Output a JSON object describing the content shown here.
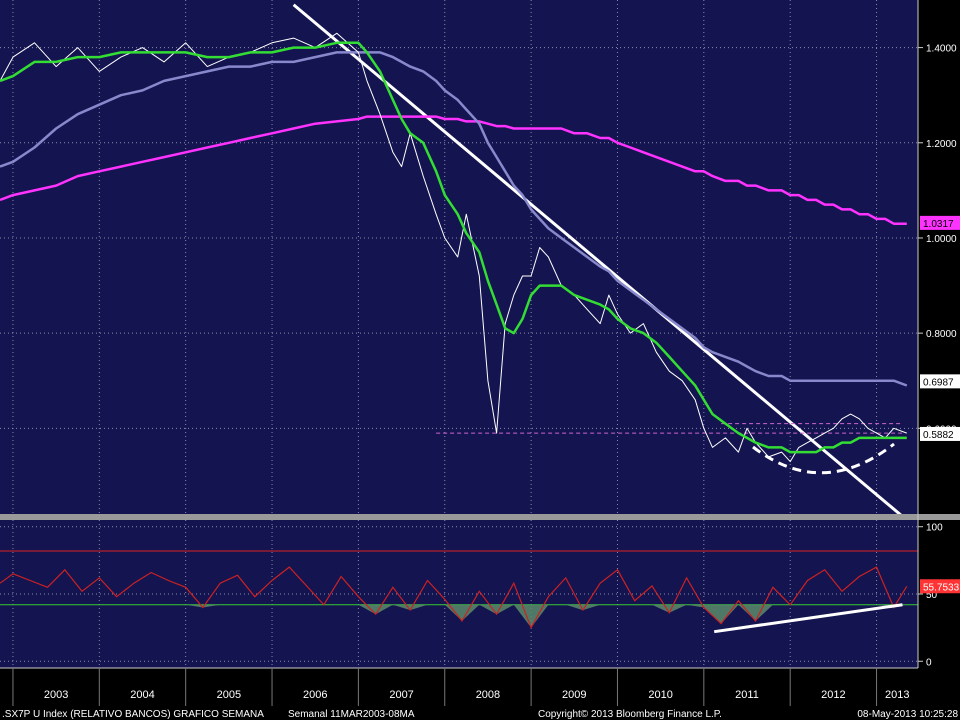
{
  "chart_data": [
    {
      "type": "line",
      "x": [
        2002.85,
        2003.0,
        2003.25,
        2003.5,
        2003.75,
        2004.0,
        2004.25,
        2004.5,
        2004.75,
        2005.0,
        2005.25,
        2005.5,
        2005.75,
        2006.0,
        2006.25,
        2006.5,
        2006.75,
        2007.0,
        2007.1,
        2007.25,
        2007.4,
        2007.5,
        2007.6,
        2007.75,
        2007.9,
        2008.0,
        2008.15,
        2008.25,
        2008.4,
        2008.5,
        2008.6,
        2008.7,
        2008.8,
        2008.9,
        2009.0,
        2009.1,
        2009.2,
        2009.35,
        2009.5,
        2009.65,
        2009.8,
        2009.9,
        2010.0,
        2010.15,
        2010.3,
        2010.45,
        2010.6,
        2010.75,
        2010.9,
        2011.0,
        2011.1,
        2011.25,
        2011.4,
        2011.5,
        2011.6,
        2011.75,
        2011.9,
        2012.0,
        2012.1,
        2012.2,
        2012.3,
        2012.4,
        2012.5,
        2012.6,
        2012.7,
        2012.8,
        2012.9,
        2013.0,
        2013.1,
        2013.2,
        2013.35
      ],
      "ylim": [
        0.42,
        1.5
      ],
      "y_ticks": [
        "1.4000",
        "1.2000",
        "1.0000",
        "0.8000",
        "0.6000"
      ],
      "y_tick_values": [
        1.4,
        1.2,
        1.0,
        0.8,
        0.6
      ],
      "series": [
        {
          "name": "price",
          "color": "#ffffff",
          "values": [
            1.33,
            1.38,
            1.41,
            1.36,
            1.4,
            1.35,
            1.38,
            1.4,
            1.37,
            1.41,
            1.36,
            1.38,
            1.39,
            1.41,
            1.42,
            1.4,
            1.43,
            1.39,
            1.33,
            1.26,
            1.18,
            1.15,
            1.22,
            1.13,
            1.05,
            1.0,
            0.96,
            1.05,
            0.92,
            0.7,
            0.59,
            0.82,
            0.88,
            0.92,
            0.92,
            0.98,
            0.96,
            0.9,
            0.88,
            0.85,
            0.82,
            0.88,
            0.84,
            0.8,
            0.82,
            0.76,
            0.72,
            0.7,
            0.66,
            0.6,
            0.56,
            0.58,
            0.55,
            0.6,
            0.57,
            0.54,
            0.55,
            0.53,
            0.56,
            0.57,
            0.58,
            0.59,
            0.6,
            0.62,
            0.63,
            0.62,
            0.6,
            0.59,
            0.58,
            0.6,
            0.59
          ]
        },
        {
          "name": "ma-short",
          "color": "#33dd33",
          "values": [
            1.33,
            1.34,
            1.37,
            1.37,
            1.38,
            1.38,
            1.39,
            1.39,
            1.39,
            1.39,
            1.38,
            1.38,
            1.39,
            1.39,
            1.4,
            1.4,
            1.41,
            1.41,
            1.39,
            1.35,
            1.29,
            1.25,
            1.22,
            1.2,
            1.14,
            1.09,
            1.05,
            1.01,
            0.97,
            0.91,
            0.86,
            0.81,
            0.8,
            0.83,
            0.88,
            0.9,
            0.9,
            0.9,
            0.88,
            0.87,
            0.86,
            0.85,
            0.83,
            0.81,
            0.8,
            0.78,
            0.75,
            0.72,
            0.69,
            0.66,
            0.63,
            0.61,
            0.59,
            0.58,
            0.57,
            0.56,
            0.56,
            0.55,
            0.55,
            0.55,
            0.55,
            0.56,
            0.56,
            0.57,
            0.57,
            0.58,
            0.58,
            0.58,
            0.58,
            0.58,
            0.58
          ]
        },
        {
          "name": "ma-long",
          "color": "#8888cc",
          "values": [
            1.15,
            1.16,
            1.19,
            1.23,
            1.26,
            1.28,
            1.3,
            1.31,
            1.33,
            1.34,
            1.35,
            1.36,
            1.36,
            1.37,
            1.37,
            1.38,
            1.39,
            1.39,
            1.39,
            1.39,
            1.38,
            1.37,
            1.36,
            1.35,
            1.33,
            1.31,
            1.29,
            1.27,
            1.24,
            1.2,
            1.17,
            1.14,
            1.11,
            1.09,
            1.06,
            1.04,
            1.02,
            1.0,
            0.98,
            0.96,
            0.94,
            0.93,
            0.91,
            0.89,
            0.87,
            0.85,
            0.83,
            0.81,
            0.79,
            0.77,
            0.76,
            0.75,
            0.74,
            0.73,
            0.72,
            0.71,
            0.71,
            0.7,
            0.7,
            0.7,
            0.7,
            0.7,
            0.7,
            0.7,
            0.7,
            0.7,
            0.7,
            0.7,
            0.7,
            0.7,
            0.69
          ]
        },
        {
          "name": "ma-very-long",
          "color": "#ff33ff",
          "values": [
            1.08,
            1.09,
            1.1,
            1.11,
            1.13,
            1.14,
            1.15,
            1.16,
            1.17,
            1.18,
            1.19,
            1.2,
            1.21,
            1.22,
            1.23,
            1.24,
            1.245,
            1.25,
            1.255,
            1.255,
            1.255,
            1.255,
            1.255,
            1.255,
            1.255,
            1.25,
            1.25,
            1.245,
            1.245,
            1.24,
            1.235,
            1.235,
            1.23,
            1.23,
            1.23,
            1.23,
            1.23,
            1.23,
            1.22,
            1.22,
            1.21,
            1.21,
            1.2,
            1.19,
            1.18,
            1.17,
            1.16,
            1.15,
            1.14,
            1.14,
            1.13,
            1.12,
            1.12,
            1.11,
            1.11,
            1.1,
            1.1,
            1.09,
            1.09,
            1.08,
            1.08,
            1.07,
            1.07,
            1.06,
            1.06,
            1.05,
            1.05,
            1.04,
            1.04,
            1.03,
            1.03
          ]
        }
      ],
      "trendlines": [
        {
          "name": "downtrend-line",
          "color": "#ffffff",
          "from": [
            2006.25,
            1.49
          ],
          "to": [
            2013.3,
            0.415
          ]
        },
        {
          "name": "support-dashed-line",
          "color": "#cc66cc",
          "from": [
            2007.9,
            0.59
          ],
          "to": [
            2013.3,
            0.59
          ]
        },
        {
          "name": "resistance-dashed-line",
          "color": "#cc66cc",
          "from": [
            2011.2,
            0.61
          ],
          "to": [
            2013.3,
            0.61
          ]
        }
      ],
      "badges": [
        {
          "name": "ma-very-long-value-badge",
          "text": "1.0317",
          "value": 1.0317,
          "bg": "#ff33ff",
          "fg": "#000000"
        },
        {
          "name": "ma-long-value-badge",
          "text": "0.6987",
          "value": 0.6987,
          "bg": "#ffffff",
          "fg": "#000000"
        },
        {
          "name": "price-value-badge",
          "text": "0.5882",
          "value": 0.5882,
          "bg": "#ffffff",
          "fg": "#000000"
        }
      ]
    },
    {
      "type": "line",
      "x": [
        2002.85,
        2003.0,
        2003.2,
        2003.4,
        2003.6,
        2003.8,
        2004.0,
        2004.2,
        2004.4,
        2004.6,
        2004.8,
        2005.0,
        2005.2,
        2005.4,
        2005.6,
        2005.8,
        2006.0,
        2006.2,
        2006.4,
        2006.6,
        2006.8,
        2007.0,
        2007.2,
        2007.4,
        2007.6,
        2007.8,
        2008.0,
        2008.2,
        2008.4,
        2008.6,
        2008.8,
        2009.0,
        2009.2,
        2009.4,
        2009.6,
        2009.8,
        2010.0,
        2010.2,
        2010.4,
        2010.6,
        2010.8,
        2011.0,
        2011.2,
        2011.4,
        2011.6,
        2011.8,
        2012.0,
        2012.2,
        2012.4,
        2012.6,
        2012.8,
        2013.0,
        2013.2,
        2013.35
      ],
      "ylim": [
        -5,
        105
      ],
      "y_ticks": [
        "100",
        "50",
        "0"
      ],
      "y_tick_values": [
        100,
        50,
        0
      ],
      "upper_level": 82,
      "lower_level": 42,
      "series": [
        {
          "name": "rsi",
          "color": "#cc2222",
          "values": [
            58,
            65,
            60,
            55,
            68,
            52,
            62,
            48,
            58,
            66,
            60,
            55,
            40,
            58,
            64,
            48,
            60,
            70,
            56,
            42,
            63,
            48,
            35,
            55,
            38,
            60,
            46,
            30,
            52,
            35,
            58,
            25,
            48,
            62,
            38,
            58,
            68,
            45,
            56,
            36,
            62,
            40,
            28,
            45,
            30,
            55,
            42,
            60,
            68,
            52,
            63,
            70,
            40,
            55.75
          ]
        }
      ],
      "trendlines": [
        {
          "name": "rsi-uptrend-line",
          "color": "#ffffff",
          "from": [
            2011.12,
            22
          ],
          "to": [
            2013.3,
            42
          ]
        }
      ],
      "badges": [
        {
          "name": "rsi-value-badge",
          "text": "55.7533",
          "value": 55.7533,
          "bg": "#ff3333",
          "fg": "#ffffff"
        }
      ]
    }
  ],
  "x_axis": {
    "years": [
      "2003",
      "2004",
      "2005",
      "2006",
      "2007",
      "2008",
      "2009",
      "2010",
      "2011",
      "2012",
      "2013"
    ],
    "year_starts": [
      2003,
      2004,
      2005,
      2006,
      2007,
      2008,
      2009,
      2010,
      2011,
      2012,
      2013
    ]
  },
  "footer": {
    "index_label": ".SX7P U Index (RELATIVO BANCOS) GRAFICO SEMANA",
    "period_label": "Semanal 11MAR2003-08MA",
    "copyright": "Copyright© 2013 Bloomberg Finance L.P.",
    "timestamp": "08-May-2013 10:25:28"
  }
}
